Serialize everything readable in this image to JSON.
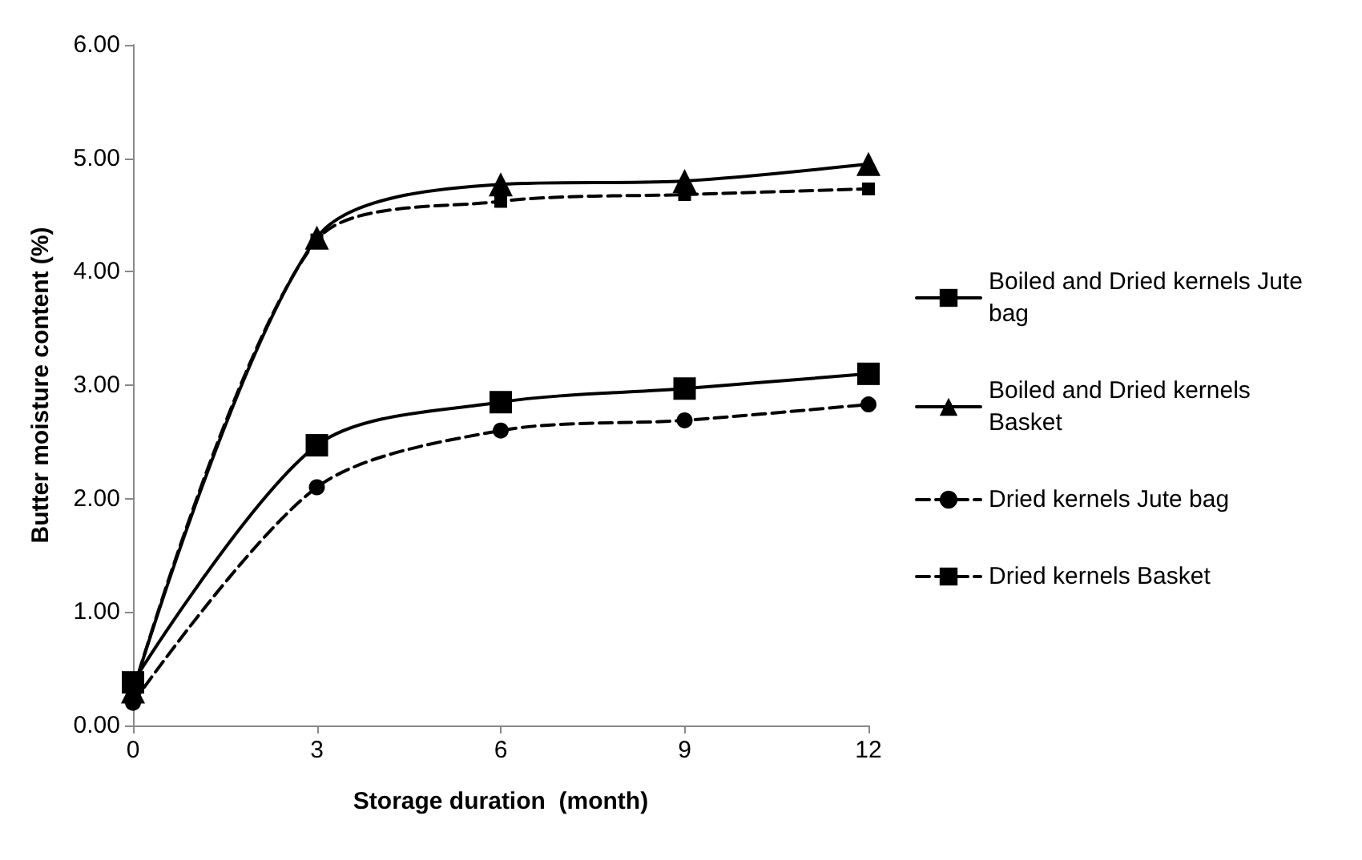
{
  "chart_data": {
    "type": "line",
    "xlabel": "Storage duration  (month)",
    "ylabel": "Butter moisture content (%)",
    "x": [
      0,
      3,
      6,
      9,
      12
    ],
    "series": [
      {
        "name": "Boiled and Dried kernels Jute bag",
        "color": "#000000",
        "marker": "square",
        "line_style": "solid",
        "values": [
          0.38,
          2.47,
          2.85,
          2.97,
          3.1
        ]
      },
      {
        "name": "Boiled and Dried kernels Basket",
        "color": "#000000",
        "marker": "triangle",
        "line_style": "solid",
        "values": [
          0.3,
          4.3,
          4.77,
          4.8,
          4.95
        ]
      },
      {
        "name": "Dried kernels Jute bag",
        "color": "#000000",
        "marker": "circle",
        "line_style": "dashed",
        "values": [
          0.2,
          2.1,
          2.6,
          2.69,
          2.83
        ]
      },
      {
        "name": "Dried kernels Basket",
        "color": "#000000",
        "marker": "square",
        "line_style": "dashed",
        "values": [
          0.3,
          4.28,
          4.62,
          4.68,
          4.73
        ]
      }
    ],
    "xlim": [
      0,
      12
    ],
    "xticks": [
      0,
      3,
      6,
      9,
      12
    ],
    "ylim": [
      0,
      6
    ],
    "yticks": [
      {
        "value": 0,
        "label": "0.00"
      },
      {
        "value": 1,
        "label": "1.00"
      },
      {
        "value": 2,
        "label": "2.00"
      },
      {
        "value": 3,
        "label": "3.00"
      },
      {
        "value": 4,
        "label": "4.00"
      },
      {
        "value": 5,
        "label": "5.00"
      },
      {
        "value": 6,
        "label": "6.00"
      }
    ],
    "grid": false,
    "legend": "right"
  }
}
